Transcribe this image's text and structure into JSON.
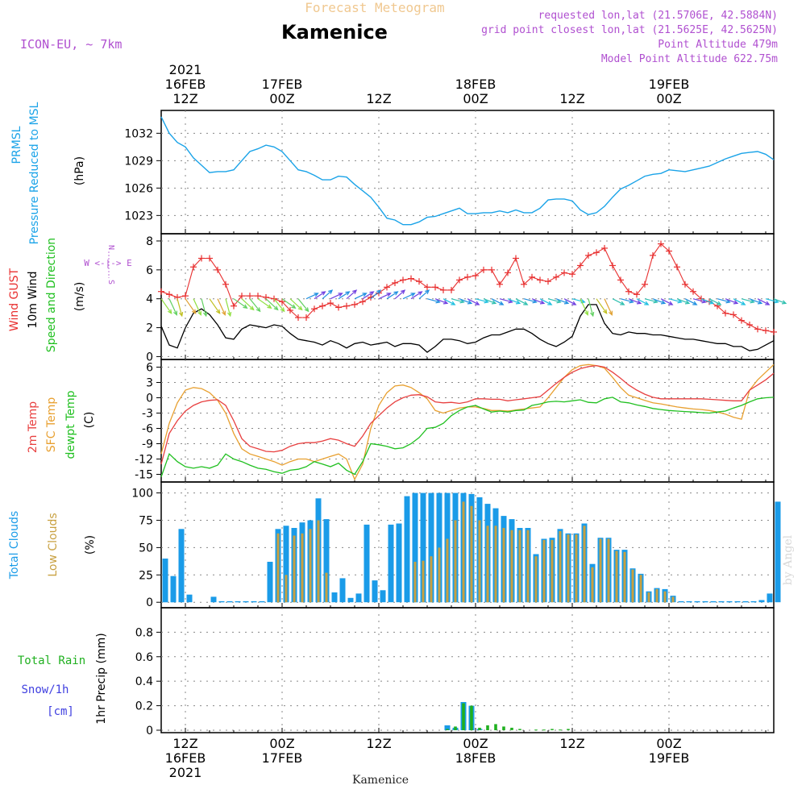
{
  "header": {
    "subtitle": "Forecast Meteogram",
    "title": "Kamenice",
    "model": "ICON-EU, ~ 7km",
    "info_lines": [
      "requested lon,lat (21.5706E, 42.5884N)",
      "grid point closest lon,lat (21.5625E, 42.5625N)",
      "Point Altitude 479m",
      "Model Point Altitude 622.75m"
    ],
    "watermark": "by Angel",
    "footer": "Kamenice"
  },
  "time_axis": {
    "top_ticks": [
      {
        "t": 3,
        "lines": [
          "2021",
          "16FEB",
          "12Z"
        ]
      },
      {
        "t": 15,
        "lines": [
          "17FEB",
          "00Z"
        ]
      },
      {
        "t": 27,
        "lines": [
          "12Z"
        ]
      },
      {
        "t": 39,
        "lines": [
          "18FEB",
          "00Z"
        ]
      },
      {
        "t": 51,
        "lines": [
          "12Z"
        ]
      },
      {
        "t": 63,
        "lines": [
          "19FEB",
          "00Z"
        ]
      }
    ],
    "bottom_ticks": [
      {
        "t": 3,
        "lines": [
          "12Z",
          "16FEB",
          "2021"
        ]
      },
      {
        "t": 15,
        "lines": [
          "00Z",
          "17FEB"
        ]
      },
      {
        "t": 27,
        "lines": [
          "12Z"
        ]
      },
      {
        "t": 39,
        "lines": [
          "00Z",
          "18FEB"
        ]
      },
      {
        "t": 51,
        "lines": [
          "12Z"
        ]
      },
      {
        "t": 63,
        "lines": [
          "00Z",
          "19FEB"
        ]
      }
    ]
  },
  "colors": {
    "pressure": "#1aa3e8",
    "gust": "#e83030",
    "wind": "#000000",
    "t2m": "#e84040",
    "sfc": "#e8a030",
    "dewpt": "#20c020",
    "total_cloud": "#1a9be8",
    "low_cloud": "#c8a040",
    "rain": "#20b020",
    "snow": "#1a9be8",
    "title_purple": "#b050d0",
    "subtitle_orange": "#f0c890"
  },
  "panels": {
    "pressure": {
      "label_lines": [
        "PRMSL",
        "Pressure Reduced to MSL"
      ],
      "unit": "(hPa)"
    },
    "wind": {
      "labels": [
        "Wind GUST",
        "10m Wind",
        "Speed and Direction"
      ],
      "unit": "(m/s)",
      "compass": "W <-|-> E"
    },
    "temp": {
      "labels": [
        "2m Temp",
        "SFC Temp",
        "dewpt Temp"
      ],
      "unit": "(C)"
    },
    "clouds": {
      "labels": [
        "Total Clouds",
        "Low Clouds"
      ],
      "unit": "(%)"
    },
    "precip": {
      "labels": [
        "Total   Rain",
        "Snow/1h",
        "[cm]"
      ],
      "unit": "1hr Precip (mm)"
    }
  },
  "chart_data": [
    {
      "type": "line",
      "title": "PRMSL Pressure Reduced to MSL",
      "ylabel": "(hPa)",
      "x_units": "hours from 2021-02-16 09Z",
      "x": [
        0,
        1,
        2,
        3,
        4,
        5,
        6,
        7,
        8,
        9,
        10,
        11,
        12,
        13,
        14,
        15,
        16,
        17,
        18,
        19,
        20,
        21,
        22,
        23,
        24,
        25,
        26,
        27,
        28,
        29,
        30,
        31,
        32,
        33,
        34,
        35,
        36,
        37,
        38,
        39,
        40,
        41,
        42,
        43,
        44,
        45,
        46,
        47,
        48,
        49,
        50,
        51,
        52,
        53,
        54,
        55,
        56,
        57,
        58,
        59,
        60,
        61,
        62,
        63,
        64,
        65,
        66,
        67,
        68,
        69,
        70,
        71,
        72,
        73,
        74,
        75,
        76
      ],
      "ylim": [
        1021,
        1034.5
      ],
      "yticks": [
        1023,
        1026,
        1029,
        1032
      ],
      "series": [
        {
          "values": [
            1033.8,
            1032.0,
            1031.0,
            1030.5,
            1029.3,
            1028.5,
            1027.7,
            1027.8,
            1027.8,
            1028.0,
            1029.0,
            1030.0,
            1030.3,
            1030.7,
            1030.5,
            1030.0,
            1029.0,
            1028.0,
            1027.8,
            1027.4,
            1026.9,
            1026.9,
            1027.3,
            1027.2,
            1026.4,
            1025.7,
            1025.0,
            1023.9,
            1022.7,
            1022.5,
            1022.0,
            1022.0,
            1022.3,
            1022.8,
            1022.9,
            1023.2,
            1023.5,
            1023.8,
            1023.2,
            1023.2,
            1023.3,
            1023.3,
            1023.5,
            1023.3,
            1023.6,
            1023.3,
            1023.3,
            1023.8,
            1024.7,
            1024.8,
            1024.8,
            1024.6,
            1023.6,
            1023.1,
            1023.3,
            1024.0,
            1025.0,
            1025.9,
            1026.3,
            1026.8,
            1027.3,
            1027.5,
            1027.6,
            1028.0,
            1027.9,
            1027.8,
            1028.0,
            1028.2,
            1028.4,
            1028.8,
            1029.2,
            1029.5,
            1029.8,
            1029.9,
            1030.0,
            1029.7,
            1029.1
          ]
        }
      ]
    },
    {
      "type": "line",
      "title": "Wind GUST / 10m Wind Speed and Direction",
      "ylabel": "(m/s)",
      "ylim": [
        -0.2,
        8.5
      ],
      "yticks": [
        0,
        2,
        4,
        6,
        8
      ],
      "series": [
        {
          "name": "Wind GUST",
          "values": [
            4.5,
            4.3,
            4.1,
            4.2,
            6.2,
            6.8,
            6.8,
            6.0,
            5.0,
            3.5,
            4.2,
            4.2,
            4.2,
            4.1,
            4.0,
            3.8,
            3.2,
            2.7,
            2.7,
            3.3,
            3.5,
            3.7,
            3.4,
            3.5,
            3.6,
            3.8,
            4.1,
            4.4,
            4.8,
            5.1,
            5.3,
            5.4,
            5.2,
            4.8,
            4.8,
            4.6,
            4.6,
            5.3,
            5.5,
            5.6,
            6.0,
            6.0,
            5.0,
            5.8,
            6.8,
            5.0,
            5.5,
            5.3,
            5.2,
            5.5,
            5.8,
            5.7,
            6.3,
            7.0,
            7.2,
            7.5,
            6.3,
            5.3,
            4.5,
            4.3,
            5.0,
            7.0,
            7.8,
            7.3,
            6.2,
            5.0,
            4.5,
            4.0,
            3.8,
            3.5,
            3.0,
            2.9,
            2.5,
            2.2,
            1.9,
            1.8,
            1.7
          ]
        },
        {
          "name": "10m Wind",
          "values": [
            2.1,
            0.8,
            0.6,
            2.0,
            3.0,
            3.3,
            2.9,
            2.2,
            1.3,
            1.2,
            1.9,
            2.2,
            2.1,
            2.0,
            2.2,
            2.1,
            1.6,
            1.2,
            1.1,
            1.0,
            0.8,
            1.1,
            0.9,
            0.6,
            0.9,
            1.0,
            0.8,
            0.9,
            1.0,
            0.7,
            0.9,
            0.9,
            0.8,
            0.3,
            0.7,
            1.2,
            1.2,
            1.1,
            0.9,
            1.0,
            1.3,
            1.5,
            1.5,
            1.7,
            1.9,
            1.9,
            1.6,
            1.2,
            0.9,
            0.7,
            1.0,
            1.4,
            2.8,
            3.6,
            3.6,
            2.3,
            1.6,
            1.5,
            1.7,
            1.6,
            1.6,
            1.5,
            1.5,
            1.4,
            1.3,
            1.2,
            1.2,
            1.1,
            1.0,
            0.9,
            0.9,
            0.7,
            0.7,
            0.4,
            0.5,
            0.8,
            1.1
          ]
        }
      ]
    },
    {
      "type": "line",
      "title": "2m Temp / SFC Temp / dewpt Temp",
      "ylabel": "(C)",
      "ylim": [
        -16.5,
        7.5
      ],
      "yticks": [
        -15,
        -12,
        -9,
        -6,
        -3,
        0,
        3,
        6
      ],
      "series": [
        {
          "name": "2m Temp",
          "values": [
            -13,
            -7,
            -4.5,
            -2.6,
            -1.5,
            -0.8,
            -0.5,
            -0.4,
            -1.5,
            -4.5,
            -8,
            -9.5,
            -10,
            -10.5,
            -10.6,
            -10.3,
            -9.5,
            -9,
            -8.8,
            -8.8,
            -8.5,
            -8,
            -8.3,
            -9,
            -9.5,
            -7.5,
            -5,
            -3.5,
            -2,
            -0.8,
            0,
            0.5,
            0.6,
            0.2,
            -0.8,
            -1,
            -0.9,
            -1.1,
            -0.8,
            -0.2,
            -0.2,
            -0.3,
            -0.3,
            -0.6,
            -0.4,
            -0.2,
            0,
            0.2,
            1.5,
            2.8,
            4.0,
            5.0,
            5.7,
            6.1,
            6.3,
            6.0,
            5.0,
            3.8,
            2.5,
            1.5,
            0.7,
            0.1,
            -0.2,
            -0.2,
            -0.2,
            -0.2,
            -0.2,
            -0.2,
            -0.3,
            -0.4,
            -0.5,
            -0.6,
            -0.6,
            1.5,
            2.5,
            3.5,
            4.8
          ]
        },
        {
          "name": "SFC Temp",
          "values": [
            -11,
            -5,
            -1,
            1.5,
            2,
            1.8,
            1.0,
            -0.5,
            -3,
            -7,
            -10,
            -11,
            -11.5,
            -12,
            -12.5,
            -13.2,
            -12.5,
            -12,
            -12,
            -12.5,
            -12,
            -11.5,
            -11,
            -12,
            -16,
            -13,
            -6,
            -1.5,
            1,
            2.3,
            2.5,
            2.0,
            1.0,
            -0.2,
            -2.5,
            -3,
            -2.5,
            -2.0,
            -1.8,
            -1.8,
            -2.1,
            -2.5,
            -2.5,
            -2.6,
            -2.4,
            -2.2,
            -2,
            -1.8,
            0,
            2.0,
            4.0,
            5.5,
            6.3,
            6.5,
            6.3,
            5.8,
            4.0,
            2.0,
            0.5,
            0,
            -0.5,
            -1.0,
            -1.2,
            -1.5,
            -1.8,
            -2.0,
            -2.2,
            -2.3,
            -2.5,
            -2.8,
            -3.2,
            -3.8,
            -4.2,
            1.5,
            3.5,
            5.0,
            6.5
          ]
        },
        {
          "name": "dewpt Temp",
          "values": [
            -15.5,
            -11,
            -12.5,
            -13.5,
            -13.8,
            -13.5,
            -13.8,
            -13.2,
            -11,
            -12,
            -12.5,
            -13.2,
            -13.8,
            -14,
            -14.5,
            -14.8,
            -14.2,
            -14,
            -13.5,
            -12.5,
            -13,
            -13.5,
            -12.8,
            -14.2,
            -15,
            -12.5,
            -9,
            -9.2,
            -9.5,
            -10,
            -9.8,
            -9.0,
            -7.8,
            -6.0,
            -5.8,
            -5.0,
            -3.5,
            -2.5,
            -1.8,
            -1.5,
            -2.2,
            -2.8,
            -2.6,
            -2.8,
            -2.5,
            -2.4,
            -1.5,
            -1.2,
            -0.8,
            -0.7,
            -0.8,
            -0.6,
            -0.4,
            -0.9,
            -1.0,
            -0.2,
            0.1,
            -0.8,
            -1.0,
            -1.4,
            -1.7,
            -2.1,
            -2.3,
            -2.5,
            -2.6,
            -2.7,
            -2.8,
            -2.9,
            -3.0,
            -2.8,
            -2.6,
            -2.0,
            -1.5,
            -0.8,
            -0.2,
            0,
            0.1
          ]
        }
      ]
    },
    {
      "type": "bar",
      "title": "Total Clouds / Low Clouds",
      "ylabel": "(%)",
      "ylim": [
        -5,
        110
      ],
      "yticks": [
        0,
        25,
        50,
        75,
        100
      ],
      "series": [
        {
          "name": "Total Clouds",
          "values": [
            40,
            24,
            67,
            7,
            0,
            0,
            5,
            1,
            1,
            1,
            1,
            1,
            1,
            37,
            67,
            70,
            68,
            73,
            75,
            95,
            76,
            9,
            22,
            4,
            8,
            71,
            20,
            11,
            71,
            72,
            97,
            100,
            100,
            100,
            100,
            100,
            100,
            100,
            99,
            96,
            90,
            86,
            79,
            76,
            68,
            68,
            44,
            58,
            59,
            67,
            63,
            63,
            72,
            35,
            59,
            59,
            48,
            48,
            31,
            26,
            10,
            13,
            12,
            6,
            1,
            1,
            1,
            1,
            1,
            1,
            1,
            1,
            1,
            1,
            2,
            8,
            92
          ]
        },
        {
          "name": "Low Clouds",
          "values": [
            0,
            0,
            0,
            0,
            0,
            0,
            0,
            0,
            0,
            0,
            0,
            0,
            0,
            0,
            63,
            25,
            61,
            63,
            67,
            75,
            27,
            0,
            0,
            0,
            0,
            0,
            0,
            0,
            0,
            0,
            0,
            37,
            38,
            42,
            50,
            58,
            75,
            92,
            88,
            75,
            70,
            70,
            68,
            66,
            66,
            66,
            42,
            57,
            57,
            65,
            62,
            62,
            70,
            32,
            58,
            58,
            47,
            46,
            30,
            25,
            9,
            12,
            10,
            5,
            0,
            0,
            0,
            0,
            0,
            0,
            0,
            0,
            0,
            0,
            0,
            0,
            0
          ]
        }
      ]
    },
    {
      "type": "bar",
      "title": "1hr Precip",
      "ylabel": "1hr Precip (mm)",
      "ylim": [
        -0.02,
        1.0
      ],
      "yticks": [
        0,
        0.2,
        0.4,
        0.6,
        0.8
      ],
      "series": [
        {
          "name": "Total Rain",
          "values": [
            0,
            0,
            0,
            0,
            0,
            0,
            0,
            0,
            0,
            0,
            0,
            0,
            0,
            0,
            0,
            0,
            0,
            0,
            0,
            0,
            0,
            0,
            0,
            0,
            0,
            0,
            0,
            0,
            0,
            0,
            0,
            0,
            0,
            0,
            0,
            0.01,
            0.03,
            0.22,
            0.2,
            0.02,
            0.04,
            0.05,
            0.03,
            0.02,
            0.01,
            0,
            0.005,
            0.005,
            0.01,
            0.005,
            0.01,
            0,
            0,
            0,
            0,
            0,
            0,
            0,
            0,
            0,
            0,
            0,
            0,
            0,
            0,
            0,
            0,
            0,
            0,
            0,
            0,
            0,
            0,
            0,
            0,
            0,
            0
          ]
        },
        {
          "name": "Snow/1h",
          "values": [
            0,
            0,
            0,
            0,
            0,
            0,
            0,
            0,
            0,
            0,
            0,
            0,
            0,
            0,
            0,
            0,
            0,
            0,
            0,
            0,
            0,
            0,
            0,
            0,
            0,
            0,
            0,
            0,
            0,
            0,
            0,
            0,
            0,
            0,
            0,
            0.04,
            0.02,
            0.23,
            0.2,
            0.01,
            0,
            0,
            0,
            0,
            0,
            0,
            0,
            0,
            0,
            0,
            0,
            0,
            0,
            0,
            0,
            0,
            0,
            0,
            0,
            0,
            0,
            0,
            0,
            0,
            0,
            0,
            0,
            0,
            0,
            0,
            0,
            0,
            0,
            0,
            0,
            0,
            0
          ]
        }
      ]
    }
  ]
}
